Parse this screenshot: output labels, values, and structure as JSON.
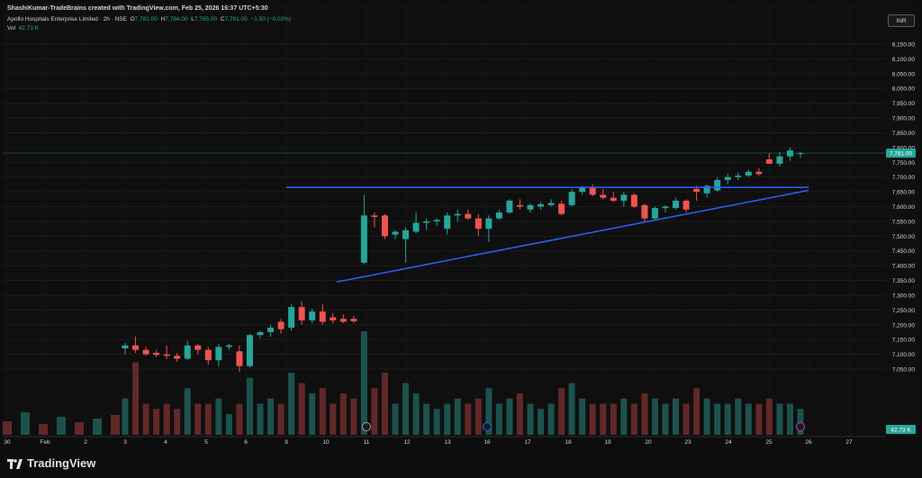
{
  "header": {
    "author_line": "ShashiKumar-TradeBrains created with TradingView.com, Feb 25, 2026 16:37 UTC+5:30",
    "symbol": "Apollo Hospitals Enterprise Limited · 2h · NSE",
    "open_label": "O",
    "open": "7,781.00",
    "high_label": "H",
    "high": "7,784.00",
    "low_label": "L",
    "low": "7,765.00",
    "close_label": "C",
    "close": "7,781.00",
    "change": "−1.50 (−0.02%)",
    "vol_label": "Vol",
    "vol": "42.73 K"
  },
  "currency": "INR",
  "brand": "TradingView",
  "colors": {
    "up": "#26a69a",
    "down": "#ef5350",
    "trendline": "#2962ff",
    "text": "#d1d4dc",
    "bg": "#0f0f0f"
  },
  "chart_data": {
    "type": "candlestick",
    "y_axis": {
      "ticks": [
        "8,150.00",
        "8,100.00",
        "8,050.00",
        "8,000.00",
        "7,950.00",
        "7,900.00",
        "7,850.00",
        "7,800.00",
        "7,750.00",
        "7,700.00",
        "7,650.00",
        "7,600.00",
        "7,550.00",
        "7,500.00",
        "7,450.00",
        "7,400.00",
        "7,350.00",
        "7,300.00",
        "7,250.00",
        "7,200.00",
        "7,150.00",
        "7,100.00",
        "7,050.00"
      ]
    },
    "x_axis": {
      "ticks": [
        "30",
        "Feb",
        "2",
        "3",
        "4",
        "5",
        "6",
        "9",
        "10",
        "11",
        "12",
        "13",
        "16",
        "17",
        "18",
        "19",
        "20",
        "23",
        "24",
        "25",
        "26",
        "27"
      ]
    },
    "last_price": "7,781.00",
    "last_volume": "42.73 K",
    "candles": [
      {
        "d": "3",
        "o": 7120,
        "h": 7140,
        "l": 7100,
        "c": 7130
      },
      {
        "d": "3",
        "o": 7130,
        "h": 7160,
        "l": 7105,
        "c": 7115
      },
      {
        "d": "3",
        "o": 7115,
        "h": 7125,
        "l": 7095,
        "c": 7100
      },
      {
        "d": "4",
        "o": 7105,
        "h": 7115,
        "l": 7090,
        "c": 7098
      },
      {
        "d": "4",
        "o": 7100,
        "h": 7130,
        "l": 7085,
        "c": 7095
      },
      {
        "d": "4",
        "o": 7095,
        "h": 7105,
        "l": 7075,
        "c": 7085
      },
      {
        "d": "5",
        "o": 7085,
        "h": 7145,
        "l": 7080,
        "c": 7130
      },
      {
        "d": "5",
        "o": 7130,
        "h": 7135,
        "l": 7100,
        "c": 7115
      },
      {
        "d": "5",
        "o": 7115,
        "h": 7125,
        "l": 7065,
        "c": 7080
      },
      {
        "d": "6",
        "o": 7080,
        "h": 7135,
        "l": 7060,
        "c": 7125
      },
      {
        "d": "6",
        "o": 7125,
        "h": 7135,
        "l": 7115,
        "c": 7130
      },
      {
        "d": "6",
        "o": 7110,
        "h": 7130,
        "l": 7040,
        "c": 7060
      },
      {
        "d": "6",
        "o": 7060,
        "h": 7170,
        "l": 7055,
        "c": 7165
      },
      {
        "d": "9",
        "o": 7165,
        "h": 7180,
        "l": 7155,
        "c": 7175
      },
      {
        "d": "9",
        "o": 7175,
        "h": 7200,
        "l": 7160,
        "c": 7190
      },
      {
        "d": "9",
        "o": 7210,
        "h": 7220,
        "l": 7170,
        "c": 7185
      },
      {
        "d": "9",
        "o": 7190,
        "h": 7270,
        "l": 7180,
        "c": 7260
      },
      {
        "d": "10",
        "o": 7260,
        "h": 7280,
        "l": 7200,
        "c": 7215
      },
      {
        "d": "10",
        "o": 7215,
        "h": 7255,
        "l": 7205,
        "c": 7245
      },
      {
        "d": "10",
        "o": 7245,
        "h": 7270,
        "l": 7200,
        "c": 7210
      },
      {
        "d": "10",
        "o": 7225,
        "h": 7240,
        "l": 7205,
        "c": 7215
      },
      {
        "d": "10",
        "o": 7220,
        "h": 7235,
        "l": 7205,
        "c": 7210
      },
      {
        "d": "10",
        "o": 7220,
        "h": 7230,
        "l": 7205,
        "c": 7212
      },
      {
        "d": "11",
        "o": 7410,
        "h": 7640,
        "l": 7405,
        "c": 7570
      },
      {
        "d": "11",
        "o": 7570,
        "h": 7580,
        "l": 7530,
        "c": 7565
      },
      {
        "d": "11",
        "o": 7570,
        "h": 7575,
        "l": 7490,
        "c": 7500
      },
      {
        "d": "12",
        "o": 7505,
        "h": 7520,
        "l": 7490,
        "c": 7515
      },
      {
        "d": "12",
        "o": 7490,
        "h": 7530,
        "l": 7410,
        "c": 7520
      },
      {
        "d": "12",
        "o": 7515,
        "h": 7580,
        "l": 7510,
        "c": 7545
      },
      {
        "d": "13",
        "o": 7545,
        "h": 7560,
        "l": 7520,
        "c": 7550
      },
      {
        "d": "13",
        "o": 7550,
        "h": 7560,
        "l": 7535,
        "c": 7555
      },
      {
        "d": "13",
        "o": 7525,
        "h": 7580,
        "l": 7505,
        "c": 7570
      },
      {
        "d": "13",
        "o": 7570,
        "h": 7590,
        "l": 7550,
        "c": 7575
      },
      {
        "d": "16",
        "o": 7575,
        "h": 7590,
        "l": 7555,
        "c": 7560
      },
      {
        "d": "16",
        "o": 7560,
        "h": 7575,
        "l": 7500,
        "c": 7525
      },
      {
        "d": "16",
        "o": 7525,
        "h": 7570,
        "l": 7480,
        "c": 7560
      },
      {
        "d": "16",
        "o": 7560,
        "h": 7590,
        "l": 7555,
        "c": 7580
      },
      {
        "d": "17",
        "o": 7580,
        "h": 7625,
        "l": 7575,
        "c": 7620
      },
      {
        "d": "17",
        "o": 7605,
        "h": 7625,
        "l": 7590,
        "c": 7600
      },
      {
        "d": "17",
        "o": 7590,
        "h": 7610,
        "l": 7580,
        "c": 7605
      },
      {
        "d": "17",
        "o": 7600,
        "h": 7615,
        "l": 7590,
        "c": 7608
      },
      {
        "d": "17",
        "o": 7605,
        "h": 7625,
        "l": 7600,
        "c": 7612
      },
      {
        "d": "18",
        "o": 7610,
        "h": 7620,
        "l": 7570,
        "c": 7575
      },
      {
        "d": "18",
        "o": 7605,
        "h": 7660,
        "l": 7600,
        "c": 7650
      },
      {
        "d": "18",
        "o": 7650,
        "h": 7670,
        "l": 7640,
        "c": 7665
      },
      {
        "d": "18",
        "o": 7665,
        "h": 7675,
        "l": 7635,
        "c": 7640
      },
      {
        "d": "19",
        "o": 7640,
        "h": 7660,
        "l": 7625,
        "c": 7630
      },
      {
        "d": "19",
        "o": 7630,
        "h": 7650,
        "l": 7615,
        "c": 7620
      },
      {
        "d": "19",
        "o": 7620,
        "h": 7650,
        "l": 7600,
        "c": 7640
      },
      {
        "d": "19",
        "o": 7640,
        "h": 7645,
        "l": 7595,
        "c": 7600
      },
      {
        "d": "20",
        "o": 7605,
        "h": 7610,
        "l": 7545,
        "c": 7560
      },
      {
        "d": "20",
        "o": 7560,
        "h": 7600,
        "l": 7555,
        "c": 7595
      },
      {
        "d": "20",
        "o": 7595,
        "h": 7605,
        "l": 7580,
        "c": 7600
      },
      {
        "d": "20",
        "o": 7595,
        "h": 7630,
        "l": 7590,
        "c": 7620
      },
      {
        "d": "23",
        "o": 7620,
        "h": 7625,
        "l": 7580,
        "c": 7590
      },
      {
        "d": "23",
        "o": 7660,
        "h": 7670,
        "l": 7620,
        "c": 7650
      },
      {
        "d": "23",
        "o": 7645,
        "h": 7675,
        "l": 7630,
        "c": 7670
      },
      {
        "d": "24",
        "o": 7655,
        "h": 7700,
        "l": 7650,
        "c": 7690
      },
      {
        "d": "24",
        "o": 7690,
        "h": 7710,
        "l": 7675,
        "c": 7700
      },
      {
        "d": "24",
        "o": 7700,
        "h": 7715,
        "l": 7690,
        "c": 7705
      },
      {
        "d": "24",
        "o": 7705,
        "h": 7725,
        "l": 7700,
        "c": 7718
      },
      {
        "d": "25",
        "o": 7718,
        "h": 7730,
        "l": 7705,
        "c": 7710
      },
      {
        "d": "25",
        "o": 7760,
        "h": 7780,
        "l": 7745,
        "c": 7745
      },
      {
        "d": "25",
        "o": 7745,
        "h": 7785,
        "l": 7735,
        "c": 7770
      },
      {
        "d": "25",
        "o": 7770,
        "h": 7800,
        "l": 7755,
        "c": 7790
      },
      {
        "d": "25",
        "o": 7781,
        "h": 7784,
        "l": 7765,
        "c": 7781
      }
    ],
    "annotations": [
      {
        "type": "horizontal-resistance",
        "price": 7665,
        "from_day": "9",
        "to_day": "26"
      },
      {
        "type": "rising-support",
        "from_price": 7345,
        "to_price": 7655,
        "from_day": "10",
        "to_day": "26"
      }
    ]
  }
}
